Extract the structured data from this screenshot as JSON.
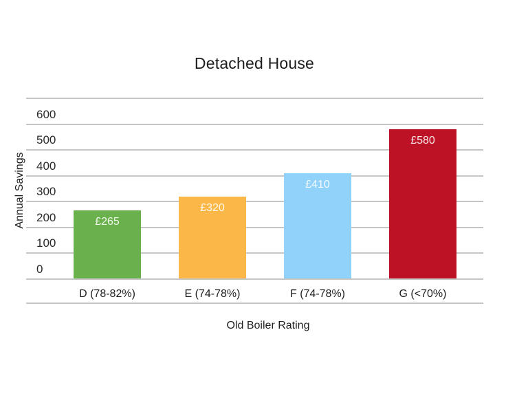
{
  "page": {
    "background_color": "#ffffff"
  },
  "chart_data": {
    "type": "bar",
    "title": "Detached House",
    "xlabel": "Old Boiler Rating",
    "ylabel": "Annual Savings",
    "categories": [
      "D (78-82%)",
      "E (74-78%)",
      "F (74-78%)",
      "G (<70%)"
    ],
    "values": [
      265,
      320,
      410,
      580
    ],
    "value_labels": [
      "£265",
      "£320",
      "£410",
      "£580"
    ],
    "currency_prefix": "£",
    "series": [
      {
        "name": "Annual Savings",
        "values": [
          265,
          320,
          410,
          580
        ]
      }
    ],
    "bar_colors": [
      "#6ab04c",
      "#fbb848",
      "#90d2f9",
      "#bd1226"
    ],
    "yticks": [
      0,
      100,
      200,
      300,
      400,
      500,
      600
    ],
    "ylim": [
      0,
      700
    ],
    "grid": true,
    "legend": "none",
    "gridline_color": "#c5c5c5",
    "value_label_color": "rgba(255,255,255,0.9)",
    "text_color": "#212121"
  }
}
